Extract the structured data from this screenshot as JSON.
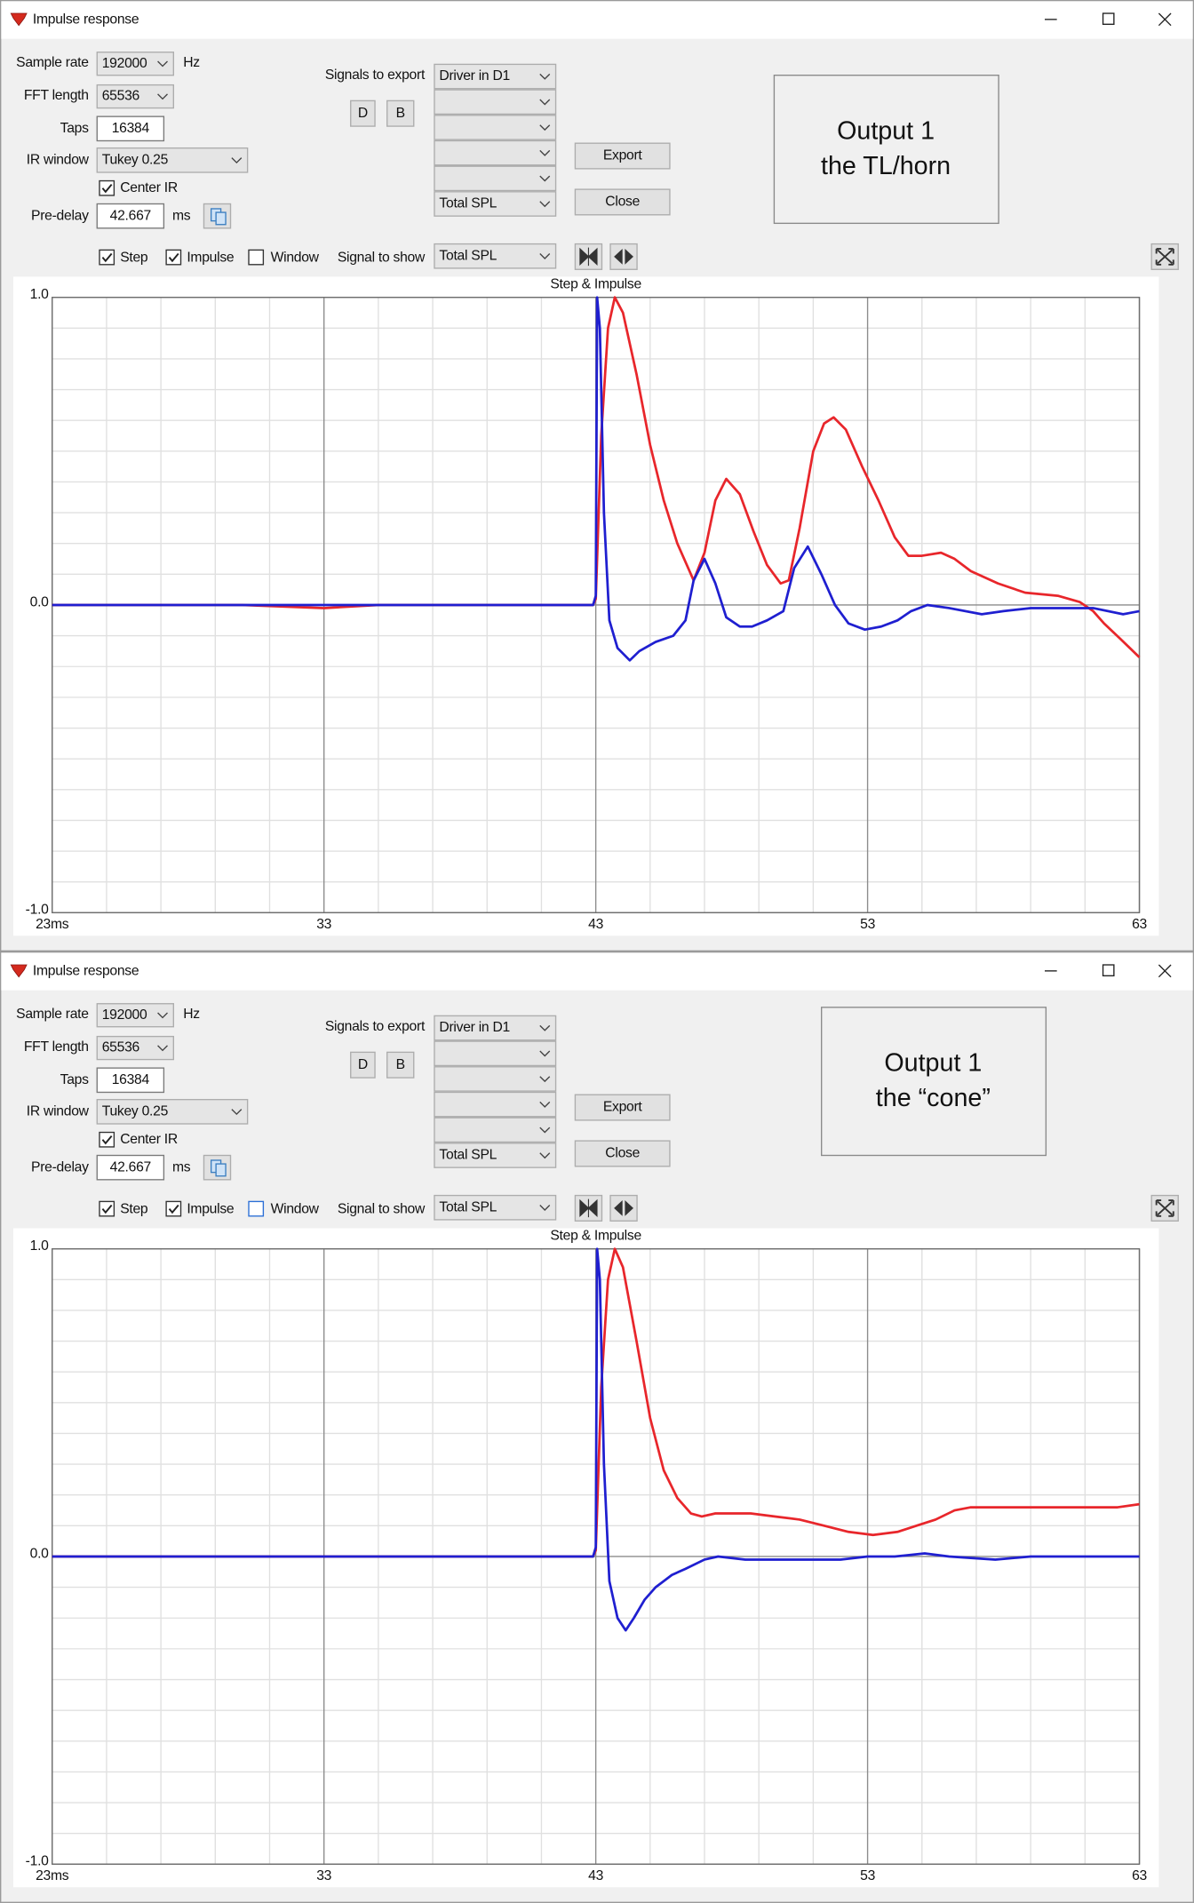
{
  "windows": [
    {
      "title": "Impulse response",
      "sample_rate_label": "Sample rate",
      "sample_rate": "192000",
      "hz": "Hz",
      "fft_length_label": "FFT length",
      "fft_length": "65536",
      "taps_label": "Taps",
      "taps": "16384",
      "ir_window_label": "IR window",
      "ir_window": "Tukey 0.25",
      "center_ir": "Center IR",
      "pre_delay_label": "Pre-delay",
      "pre_delay": "42.667",
      "ms": "ms",
      "signals_to_export": "Signals to export",
      "export_first": "Driver in D1",
      "export_last": "Total SPL",
      "d": "D",
      "b": "B",
      "export": "Export",
      "close": "Close",
      "note": [
        "Output 1",
        "the TL/horn"
      ],
      "window": "Window",
      "signal_to_show": "Signal to show",
      "signal_shown": "Total SPL"
    },
    {
      "title": "Impulse response",
      "sample_rate_label": "Sample rate",
      "sample_rate": "192000",
      "hz": "Hz",
      "fft_length_label": "FFT length",
      "fft_length": "65536",
      "taps_label": "Taps",
      "taps": "16384",
      "ir_window_label": "IR window",
      "ir_window": "Tukey 0.25",
      "center_ir": "Center IR",
      "pre_delay_label": "Pre-delay",
      "pre_delay": "42.667",
      "ms": "ms",
      "signals_to_export": "Signals to export",
      "export_first": "Driver in D1",
      "export_last": "Total SPL",
      "d": "D",
      "b": "B",
      "export": "Export",
      "close": "Close",
      "note": [
        "Output 1",
        "the “cone”"
      ],
      "window": "Window",
      "signal_to_show": "Signal to show",
      "signal_shown": "Total SPL"
    }
  ],
  "chart_data": [
    {
      "type": "line",
      "title": "Step & Impulse",
      "xlim": [
        23,
        63
      ],
      "xticks": [
        {
          "value": 23,
          "label": "23ms"
        },
        33,
        43,
        53,
        63
      ],
      "xminorticks": [
        25,
        27,
        29,
        31,
        35,
        37,
        39,
        41,
        45,
        47,
        49,
        51,
        55,
        57,
        59,
        61
      ],
      "ylim": [
        -1,
        1
      ],
      "yticks": [
        {
          "value": -1,
          "label": "-1.0"
        },
        {
          "value": 0,
          "label": "0.0"
        },
        {
          "value": 1,
          "label": "1.0"
        }
      ],
      "yminorticks": [
        -0.9,
        -0.8,
        -0.7,
        -0.6,
        -0.5,
        -0.4,
        -0.3,
        -0.2,
        -0.1,
        0.1,
        0.2,
        0.3,
        0.4,
        0.5,
        0.6,
        0.7,
        0.8,
        0.9
      ],
      "grid": true,
      "series": [
        {
          "name": "Step",
          "color": "#e8262b",
          "x": [
            23,
            30,
            33,
            35,
            40,
            42.9,
            43.0,
            43.2,
            43.45,
            43.7,
            44.0,
            44.5,
            45.0,
            45.5,
            46.0,
            46.6,
            47.0,
            47.4,
            47.8,
            48.3,
            48.8,
            49.3,
            49.8,
            50.1,
            50.5,
            51.0,
            51.4,
            51.75,
            52.2,
            52.8,
            53.4,
            54.0,
            54.5,
            55.0,
            55.7,
            56.2,
            56.8,
            57.8,
            58.8,
            60.0,
            60.8,
            61.3,
            61.7,
            62.3,
            63
          ],
          "values": [
            0,
            0,
            -0.01,
            0,
            0,
            0,
            0.02,
            0.55,
            0.9,
            1.0,
            0.95,
            0.75,
            0.52,
            0.34,
            0.2,
            0.08,
            0.17,
            0.34,
            0.41,
            0.36,
            0.24,
            0.13,
            0.07,
            0.08,
            0.25,
            0.5,
            0.59,
            0.61,
            0.57,
            0.45,
            0.34,
            0.22,
            0.16,
            0.16,
            0.17,
            0.15,
            0.11,
            0.07,
            0.04,
            0.03,
            0.01,
            -0.02,
            -0.06,
            -0.11,
            -0.17
          ]
        },
        {
          "name": "Impulse",
          "color": "#1f1fd0",
          "x": [
            23,
            30,
            36,
            40,
            42.9,
            43.0,
            43.05,
            43.15,
            43.3,
            43.5,
            43.8,
            44.25,
            44.6,
            45.2,
            45.85,
            46.3,
            46.6,
            47.0,
            47.4,
            47.8,
            48.3,
            48.75,
            49.3,
            49.9,
            50.3,
            50.8,
            51.3,
            51.8,
            52.3,
            52.9,
            53.5,
            54.1,
            54.6,
            55.2,
            56.0,
            57.2,
            58.0,
            59.0,
            60.2,
            61.3,
            62.4,
            63
          ],
          "values": [
            0,
            0,
            0,
            0,
            0,
            0.03,
            1.0,
            0.9,
            0.3,
            -0.05,
            -0.14,
            -0.18,
            -0.15,
            -0.12,
            -0.1,
            -0.05,
            0.08,
            0.15,
            0.07,
            -0.04,
            -0.07,
            -0.07,
            -0.05,
            -0.02,
            0.12,
            0.19,
            0.1,
            0.0,
            -0.06,
            -0.08,
            -0.07,
            -0.05,
            -0.02,
            0.0,
            -0.01,
            -0.03,
            -0.02,
            -0.01,
            -0.01,
            -0.01,
            -0.03,
            -0.02
          ]
        }
      ]
    },
    {
      "type": "line",
      "title": "Step & Impulse",
      "xlim": [
        23,
        63
      ],
      "xticks": [
        {
          "value": 23,
          "label": "23ms"
        },
        33,
        43,
        53,
        63
      ],
      "xminorticks": [
        25,
        27,
        29,
        31,
        35,
        37,
        39,
        41,
        45,
        47,
        49,
        51,
        55,
        57,
        59,
        61
      ],
      "ylim": [
        -1,
        1
      ],
      "yticks": [
        {
          "value": -1,
          "label": "-1.0"
        },
        {
          "value": 0,
          "label": "0.0"
        },
        {
          "value": 1,
          "label": "1.0"
        }
      ],
      "yminorticks": [
        -0.9,
        -0.8,
        -0.7,
        -0.6,
        -0.5,
        -0.4,
        -0.3,
        -0.2,
        -0.1,
        0.1,
        0.2,
        0.3,
        0.4,
        0.5,
        0.6,
        0.7,
        0.8,
        0.9
      ],
      "grid": true,
      "series": [
        {
          "name": "Step",
          "color": "#e8262b",
          "x": [
            23,
            30,
            40,
            42.9,
            43.0,
            43.2,
            43.45,
            43.7,
            44.0,
            44.5,
            45.0,
            45.5,
            46.0,
            46.5,
            46.9,
            47.4,
            47.9,
            48.7,
            49.6,
            50.5,
            51.4,
            52.3,
            53.2,
            54.1,
            54.8,
            55.5,
            56.2,
            56.8,
            57.8,
            59.0,
            60.2,
            61.3,
            62.2,
            63
          ],
          "values": [
            0,
            0,
            0,
            0,
            0.02,
            0.55,
            0.9,
            1.0,
            0.94,
            0.7,
            0.45,
            0.28,
            0.19,
            0.14,
            0.13,
            0.14,
            0.14,
            0.14,
            0.13,
            0.12,
            0.1,
            0.08,
            0.07,
            0.08,
            0.1,
            0.12,
            0.15,
            0.16,
            0.16,
            0.16,
            0.16,
            0.16,
            0.16,
            0.17
          ]
        },
        {
          "name": "Impulse",
          "color": "#1f1fd0",
          "x": [
            23,
            30,
            40,
            42.9,
            43.0,
            43.05,
            43.15,
            43.3,
            43.5,
            43.8,
            44.1,
            44.4,
            44.8,
            45.2,
            45.8,
            46.3,
            47.0,
            47.5,
            48.5,
            49.6,
            50.3,
            51.0,
            52.0,
            53.0,
            54.0,
            55.1,
            56.0,
            57.7,
            59.0,
            61.0,
            63
          ],
          "values": [
            0,
            0,
            0,
            0,
            0.03,
            1.0,
            0.9,
            0.3,
            -0.08,
            -0.2,
            -0.24,
            -0.2,
            -0.14,
            -0.1,
            -0.06,
            -0.04,
            -0.01,
            0.0,
            -0.01,
            -0.01,
            -0.01,
            -0.01,
            -0.01,
            0.0,
            0.0,
            0.01,
            0.0,
            -0.01,
            0.0,
            0.0,
            0.0
          ]
        }
      ]
    }
  ]
}
